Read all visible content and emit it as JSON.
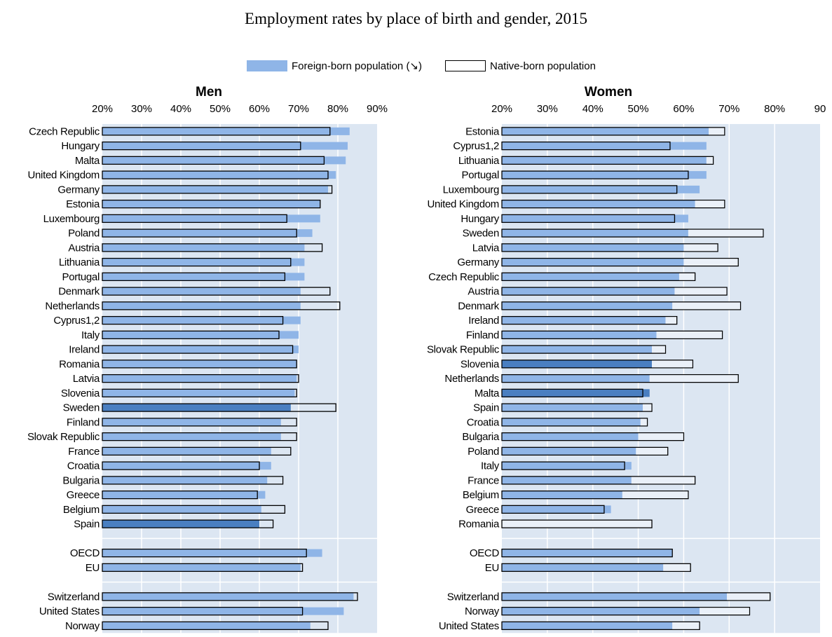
{
  "title": "Employment rates by place of birth and gender, 2015",
  "legend": {
    "foreign_label": "Foreign-born population (↘)",
    "native_label": "Native-born population"
  },
  "colors": {
    "foreign": "#8fb5e7",
    "foreign_highlight": "#4a7fc1",
    "native_outline": "#000000",
    "plot_background": "#dce6f2",
    "native_fill_women": "#eaf0f8"
  },
  "chart_data": [
    {
      "type": "bar",
      "orientation": "horizontal",
      "panel": "men",
      "title": "Men",
      "xlim": [
        20,
        90
      ],
      "x_ticks": [
        "20%",
        "30%",
        "40%",
        "50%",
        "60%",
        "70%",
        "80%",
        "90%"
      ],
      "grid": true,
      "rows": [
        {
          "label": "Czech Republic",
          "foreign": 83,
          "native": 78
        },
        {
          "label": "Hungary",
          "foreign": 82.5,
          "native": 70.5
        },
        {
          "label": "Malta",
          "foreign": 82,
          "native": 76.5
        },
        {
          "label": "United Kingdom",
          "foreign": 79.5,
          "native": 77.5
        },
        {
          "label": "Germany",
          "foreign": 77.5,
          "native": 78.5
        },
        {
          "label": "Estonia",
          "foreign": 75.5,
          "native": 75.5
        },
        {
          "label": "Luxembourg",
          "foreign": 75.5,
          "native": 67
        },
        {
          "label": "Poland",
          "foreign": 73.5,
          "native": 69.5
        },
        {
          "label": "Austria",
          "foreign": 71.5,
          "native": 76
        },
        {
          "label": "Lithuania",
          "foreign": 71.5,
          "native": 68
        },
        {
          "label": "Portugal",
          "foreign": 71.5,
          "native": 66.5
        },
        {
          "label": "Denmark",
          "foreign": 70.5,
          "native": 78
        },
        {
          "label": "Netherlands",
          "foreign": 70.5,
          "native": 80.5
        },
        {
          "label": "Cyprus1,2",
          "foreign": 70.5,
          "native": 66
        },
        {
          "label": "Italy",
          "foreign": 70,
          "native": 65
        },
        {
          "label": "Ireland",
          "foreign": 70,
          "native": 68.5
        },
        {
          "label": "Romania",
          "foreign": 69.5,
          "native": 69.5
        },
        {
          "label": "Latvia",
          "foreign": 69.5,
          "native": 70
        },
        {
          "label": "Slovenia",
          "foreign": 69,
          "native": 69.5
        },
        {
          "label": "Sweden",
          "foreign": 68,
          "native": 79.5,
          "highlight": true
        },
        {
          "label": "Finland",
          "foreign": 65.5,
          "native": 69.5
        },
        {
          "label": "Slovak Republic",
          "foreign": 65.5,
          "native": 69.5
        },
        {
          "label": "France",
          "foreign": 63,
          "native": 68
        },
        {
          "label": "Croatia",
          "foreign": 63,
          "native": 60
        },
        {
          "label": "Bulgaria",
          "foreign": 62,
          "native": 66
        },
        {
          "label": "Greece",
          "foreign": 61.5,
          "native": 59.5
        },
        {
          "label": "Belgium",
          "foreign": 60.5,
          "native": 66.5
        },
        {
          "label": "Spain",
          "foreign": 60,
          "native": 63.5,
          "highlight": true
        },
        {
          "gap": true
        },
        {
          "label": "OECD",
          "foreign": 76,
          "native": 72
        },
        {
          "label": "EU",
          "foreign": 70.5,
          "native": 71
        },
        {
          "gap": true
        },
        {
          "label": "Switzerland",
          "foreign": 84,
          "native": 85
        },
        {
          "label": "United States",
          "foreign": 81.5,
          "native": 71
        },
        {
          "label": "Norway",
          "foreign": 73,
          "native": 77.5
        }
      ]
    },
    {
      "type": "bar",
      "orientation": "horizontal",
      "panel": "women",
      "title": "Women",
      "xlim": [
        20,
        90
      ],
      "x_ticks": [
        "20%",
        "30%",
        "40%",
        "50%",
        "60%",
        "70%",
        "80%",
        "90"
      ],
      "grid": true,
      "rows": [
        {
          "label": "Estonia",
          "foreign": 65.5,
          "native": 69
        },
        {
          "label": "Cyprus1,2",
          "foreign": 65,
          "native": 57
        },
        {
          "label": "Lithuania",
          "foreign": 65,
          "native": 66.5
        },
        {
          "label": "Portugal",
          "foreign": 65,
          "native": 61
        },
        {
          "label": "Luxembourg",
          "foreign": 63.5,
          "native": 58.5
        },
        {
          "label": "United Kingdom",
          "foreign": 62.5,
          "native": 69
        },
        {
          "label": "Hungary",
          "foreign": 61,
          "native": 58
        },
        {
          "label": "Sweden",
          "foreign": 61,
          "native": 77.5
        },
        {
          "label": "Latvia",
          "foreign": 60,
          "native": 67.5
        },
        {
          "label": "Germany",
          "foreign": 60,
          "native": 72
        },
        {
          "label": "Czech Republic",
          "foreign": 59,
          "native": 62.5
        },
        {
          "label": "Austria",
          "foreign": 58,
          "native": 69.5
        },
        {
          "label": "Denmark",
          "foreign": 57.5,
          "native": 72.5
        },
        {
          "label": "Ireland",
          "foreign": 56,
          "native": 58.5
        },
        {
          "label": "Finland",
          "foreign": 54,
          "native": 68.5
        },
        {
          "label": "Slovak Republic",
          "foreign": 53,
          "native": 56
        },
        {
          "label": "Slovenia",
          "foreign": 53,
          "native": 62,
          "highlight": true
        },
        {
          "label": "Netherlands",
          "foreign": 52.5,
          "native": 72
        },
        {
          "label": "Malta",
          "foreign": 52.5,
          "native": 51,
          "highlight": true
        },
        {
          "label": "Spain",
          "foreign": 51,
          "native": 53
        },
        {
          "label": "Croatia",
          "foreign": 50.5,
          "native": 52
        },
        {
          "label": "Bulgaria",
          "foreign": 50,
          "native": 60
        },
        {
          "label": "Poland",
          "foreign": 49.5,
          "native": 56.5
        },
        {
          "label": "Italy",
          "foreign": 48.5,
          "native": 47
        },
        {
          "label": "France",
          "foreign": 48.5,
          "native": 62.5
        },
        {
          "label": "Belgium",
          "foreign": 46.5,
          "native": 61
        },
        {
          "label": "Greece",
          "foreign": 44,
          "native": 42.5
        },
        {
          "label": "Romania",
          "foreign": null,
          "native": 53
        },
        {
          "gap": true
        },
        {
          "label": "OECD",
          "foreign": 57.5,
          "native": 57.5
        },
        {
          "label": "EU",
          "foreign": 55.5,
          "native": 61.5
        },
        {
          "gap": true
        },
        {
          "label": "Switzerland",
          "foreign": 69.5,
          "native": 79
        },
        {
          "label": "Norway",
          "foreign": 63.5,
          "native": 74.5
        },
        {
          "label": "United States",
          "foreign": 57.5,
          "native": 63.5
        }
      ]
    }
  ]
}
